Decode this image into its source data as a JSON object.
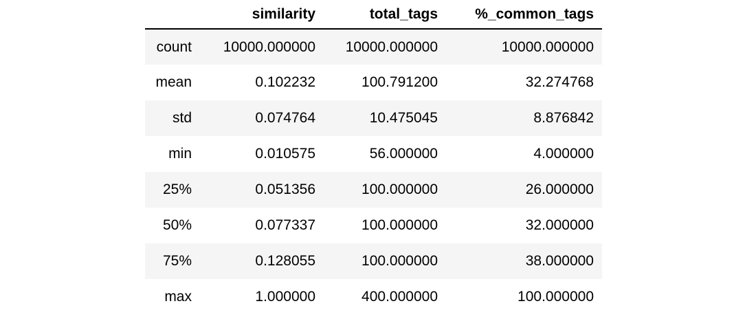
{
  "table": {
    "index_header": "",
    "columns": [
      "similarity",
      "total_tags",
      "%_common_tags"
    ],
    "rows": [
      {
        "index": "count",
        "values": [
          "10000.000000",
          "10000.000000",
          "10000.000000"
        ]
      },
      {
        "index": "mean",
        "values": [
          "0.102232",
          "100.791200",
          "32.274768"
        ]
      },
      {
        "index": "std",
        "values": [
          "0.074764",
          "10.475045",
          "8.876842"
        ]
      },
      {
        "index": "min",
        "values": [
          "0.010575",
          "56.000000",
          "4.000000"
        ]
      },
      {
        "index": "25%",
        "values": [
          "0.051356",
          "100.000000",
          "26.000000"
        ]
      },
      {
        "index": "50%",
        "values": [
          "0.077337",
          "100.000000",
          "32.000000"
        ]
      },
      {
        "index": "75%",
        "values": [
          "0.128055",
          "100.000000",
          "38.000000"
        ]
      },
      {
        "index": "max",
        "values": [
          "1.000000",
          "400.000000",
          "100.000000"
        ]
      }
    ]
  },
  "colors": {
    "stripe": "#f5f5f5",
    "header_rule": "#000000"
  }
}
